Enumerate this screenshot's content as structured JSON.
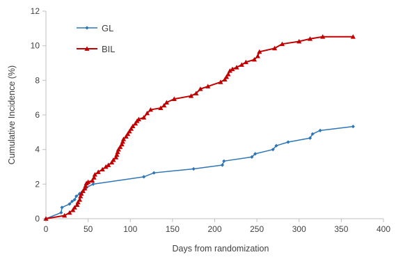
{
  "chart_data": {
    "type": "line",
    "title": "",
    "xlabel": "Days from randomization",
    "ylabel": "Cumulative Incidence (%)",
    "xlim": [
      0,
      400
    ],
    "ylim": [
      0,
      12
    ],
    "xticks": [
      0,
      50,
      100,
      150,
      200,
      250,
      300,
      350,
      400
    ],
    "yticks": [
      0,
      2,
      4,
      6,
      8,
      10,
      12
    ],
    "grid": false,
    "legend_position": "top-left",
    "series": [
      {
        "name": "GL",
        "color": "#2E75B6",
        "marker": "diamond",
        "step": true,
        "points": [
          [
            0,
            0
          ],
          [
            18,
            0.35
          ],
          [
            19,
            0.65
          ],
          [
            28,
            0.85
          ],
          [
            31,
            1.0
          ],
          [
            34,
            1.1
          ],
          [
            36,
            1.3
          ],
          [
            40,
            1.45
          ],
          [
            43,
            1.55
          ],
          [
            46,
            1.7
          ],
          [
            48,
            1.8
          ],
          [
            56,
            2.0
          ],
          [
            116,
            2.42
          ],
          [
            128,
            2.65
          ],
          [
            175,
            2.88
          ],
          [
            209,
            3.1
          ],
          [
            211,
            3.33
          ],
          [
            244,
            3.57
          ],
          [
            248,
            3.75
          ],
          [
            269,
            4.0
          ],
          [
            273,
            4.22
          ],
          [
            287,
            4.43
          ],
          [
            313,
            4.66
          ],
          [
            316,
            4.9
          ],
          [
            325,
            5.1
          ],
          [
            364,
            5.33
          ]
        ]
      },
      {
        "name": "BIL",
        "color": "#C00000",
        "marker": "triangle",
        "step": true,
        "points": [
          [
            0,
            0
          ],
          [
            22,
            0.18
          ],
          [
            28,
            0.35
          ],
          [
            32,
            0.5
          ],
          [
            34,
            0.65
          ],
          [
            37,
            0.8
          ],
          [
            38,
            0.95
          ],
          [
            40,
            1.1
          ],
          [
            41,
            1.3
          ],
          [
            42,
            1.45
          ],
          [
            44,
            1.6
          ],
          [
            46,
            1.75
          ],
          [
            47,
            1.9
          ],
          [
            48,
            2.05
          ],
          [
            50,
            2.12
          ],
          [
            55,
            2.2
          ],
          [
            57,
            2.38
          ],
          [
            58,
            2.55
          ],
          [
            62,
            2.7
          ],
          [
            67,
            2.85
          ],
          [
            71,
            3.0
          ],
          [
            74,
            3.1
          ],
          [
            78,
            3.25
          ],
          [
            80,
            3.4
          ],
          [
            83,
            3.55
          ],
          [
            84,
            3.7
          ],
          [
            85,
            3.85
          ],
          [
            86,
            4.0
          ],
          [
            88,
            4.15
          ],
          [
            90,
            4.3
          ],
          [
            91,
            4.45
          ],
          [
            92,
            4.6
          ],
          [
            95,
            4.75
          ],
          [
            97,
            4.9
          ],
          [
            99,
            5.05
          ],
          [
            101,
            5.2
          ],
          [
            103,
            5.35
          ],
          [
            106,
            5.5
          ],
          [
            108,
            5.65
          ],
          [
            110,
            5.75
          ],
          [
            116,
            5.85
          ],
          [
            120,
            6.1
          ],
          [
            124,
            6.3
          ],
          [
            136,
            6.4
          ],
          [
            140,
            6.55
          ],
          [
            143,
            6.72
          ],
          [
            152,
            6.92
          ],
          [
            172,
            7.1
          ],
          [
            178,
            7.25
          ],
          [
            183,
            7.5
          ],
          [
            192,
            7.65
          ],
          [
            207,
            7.9
          ],
          [
            212,
            8.05
          ],
          [
            214,
            8.2
          ],
          [
            216,
            8.35
          ],
          [
            218,
            8.55
          ],
          [
            221,
            8.65
          ],
          [
            226,
            8.75
          ],
          [
            232,
            8.9
          ],
          [
            237,
            9.05
          ],
          [
            247,
            9.2
          ],
          [
            251,
            9.4
          ],
          [
            253,
            9.65
          ],
          [
            271,
            9.85
          ],
          [
            280,
            10.1
          ],
          [
            300,
            10.25
          ],
          [
            313,
            10.4
          ],
          [
            328,
            10.52
          ],
          [
            364,
            10.52
          ]
        ]
      }
    ]
  }
}
